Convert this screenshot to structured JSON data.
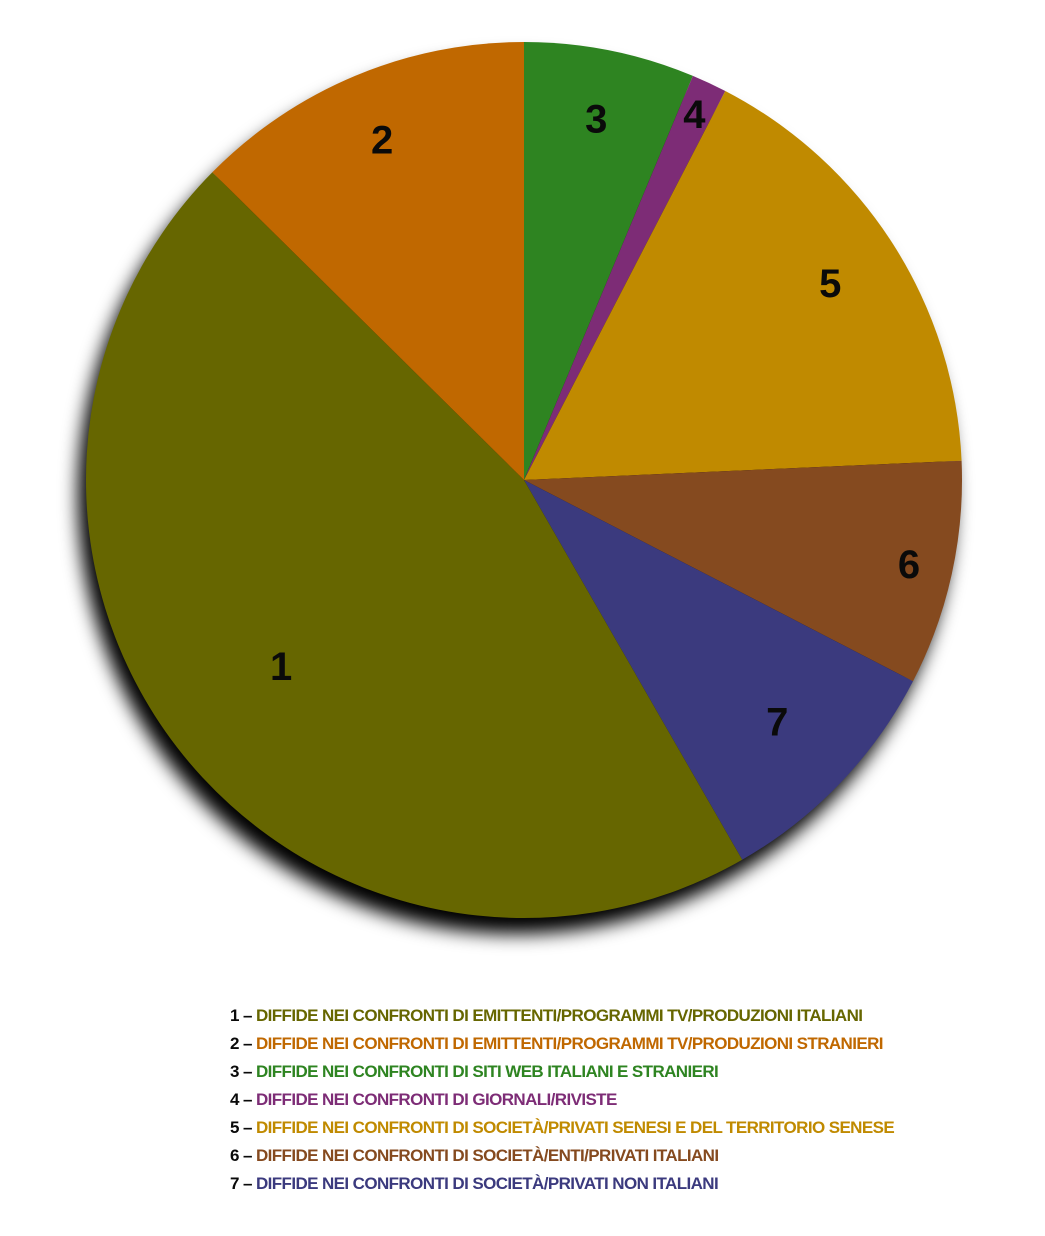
{
  "chart_data": {
    "type": "pie",
    "start_angle_deg": 0,
    "direction": "clockwise",
    "slices": [
      {
        "label": "3",
        "value": 6.3,
        "color": "#2e8421"
      },
      {
        "label": "4",
        "value": 1.3,
        "color": "#7d2c76"
      },
      {
        "label": "5",
        "value": 16.7,
        "color": "#c08a00"
      },
      {
        "label": "6",
        "value": 8.3,
        "color": "#854a1f"
      },
      {
        "label": "7",
        "value": 9.1,
        "color": "#3b3a7e"
      },
      {
        "label": "1",
        "value": 45.7,
        "color": "#666600"
      },
      {
        "label": "2",
        "value": 12.6,
        "color": "#c06800"
      }
    ]
  },
  "legend": [
    {
      "num": "1",
      "dash": "–",
      "text": "DIFFIDE NEI CONFRONTI DI EMITTENTI/PROGRAMMI TV/PRODUZIONI ITALIANI",
      "color": "#666600"
    },
    {
      "num": "2",
      "dash": "–",
      "text": "DIFFIDE NEI CONFRONTI DI EMITTENTI/PROGRAMMI TV/PRODUZIONI STRANIERI",
      "color": "#c06800"
    },
    {
      "num": "3",
      "dash": "–",
      "text": "DIFFIDE NEI CONFRONTI DI SITI WEB ITALIANI E STRANIERI",
      "color": "#2e8421"
    },
    {
      "num": "4",
      "dash": "–",
      "text": "DIFFIDE NEI CONFRONTI DI GIORNALI/RIVISTE",
      "color": "#7d2c76"
    },
    {
      "num": "5",
      "dash": "–",
      "text": "DIFFIDE NEI CONFRONTI DI SOCIETÀ/PRIVATI SENESI E DEL TERRITORIO SENESE",
      "color": "#c08a00"
    },
    {
      "num": "6",
      "dash": "–",
      "text": "DIFFIDE NEI CONFRONTI DI SOCIETÀ/ENTI/PRIVATI ITALIANI",
      "color": "#854a1f"
    },
    {
      "num": "7",
      "dash": "–",
      "text": "DIFFIDE NEI CONFRONTI DI SOCIETÀ/PRIVATI NON ITALIANI",
      "color": "#3b3a7e"
    }
  ]
}
